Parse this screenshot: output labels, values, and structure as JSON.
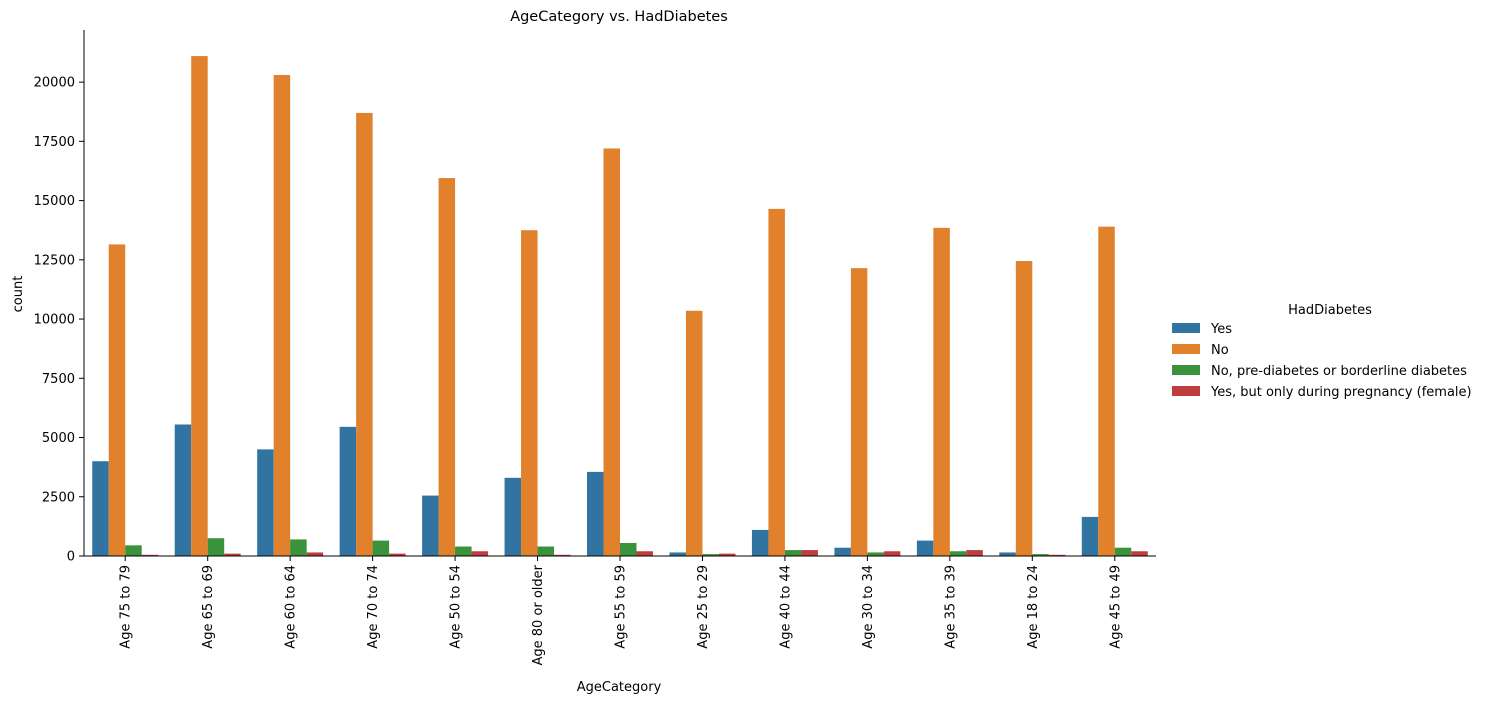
{
  "chart_data": {
    "type": "bar",
    "title": "AgeCategory vs. HadDiabetes",
    "xlabel": "AgeCategory",
    "ylabel": "count",
    "ylim": [
      0,
      22200
    ],
    "yticks": [
      0,
      2500,
      5000,
      7500,
      10000,
      12500,
      15000,
      17500,
      20000
    ],
    "grid": false,
    "legend_title": "HadDiabetes",
    "legend_position": "right",
    "categories": [
      "Age 75 to 79",
      "Age 65 to 69",
      "Age 60 to 64",
      "Age 70 to 74",
      "Age 50 to 54",
      "Age 80 or older",
      "Age 55 to 59",
      "Age 25 to 29",
      "Age 40 to 44",
      "Age 30 to 34",
      "Age 35 to 39",
      "Age 18 to 24",
      "Age 45 to 49"
    ],
    "series": [
      {
        "name": "Yes",
        "color": "#3274a1",
        "values": [
          4000,
          5550,
          4500,
          5450,
          2550,
          3300,
          3550,
          150,
          1100,
          350,
          650,
          150,
          1650
        ]
      },
      {
        "name": "No",
        "color": "#e1812c",
        "values": [
          13150,
          21100,
          20300,
          18700,
          15950,
          13750,
          17200,
          10350,
          14650,
          12150,
          13850,
          12450,
          13900
        ]
      },
      {
        "name": "No, pre-diabetes or borderline diabetes",
        "color": "#3a923a",
        "values": [
          450,
          750,
          700,
          650,
          400,
          400,
          550,
          80,
          250,
          150,
          200,
          80,
          350
        ]
      },
      {
        "name": "Yes, but only during pregnancy (female)",
        "color": "#c03d3e",
        "values": [
          50,
          100,
          150,
          100,
          200,
          50,
          200,
          100,
          250,
          200,
          250,
          50,
          200
        ]
      }
    ]
  }
}
